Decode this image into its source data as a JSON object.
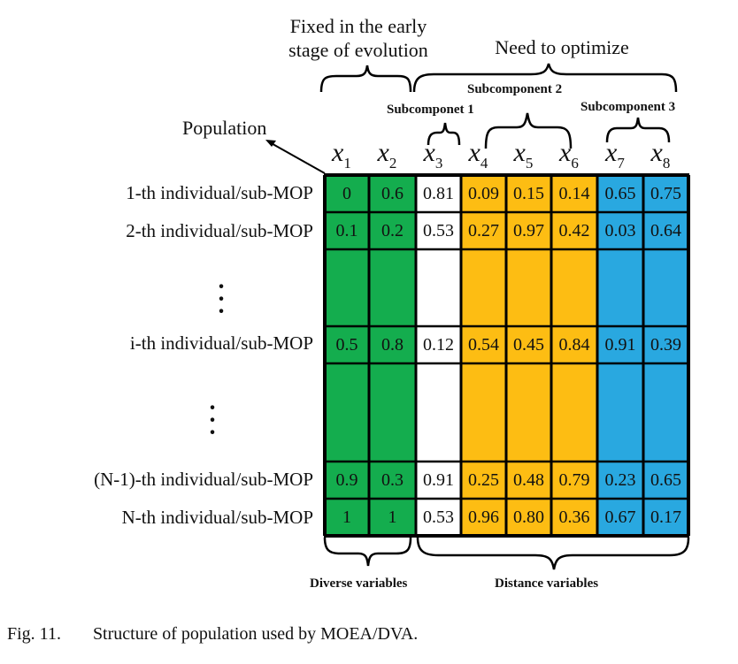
{
  "annotations": {
    "fixed_line1": "Fixed in the early",
    "fixed_line2": "stage of evolution",
    "need_optimize": "Need to optimize",
    "subcomponent1": "Subcomponet 1",
    "subcomponent2": "Subcomponent 2",
    "subcomponent3": "Subcomponent 3",
    "population": "Population",
    "diverse_variables": "Diverse variables",
    "distance_variables": "Distance variables"
  },
  "variables": [
    {
      "base": "x",
      "sub": "1"
    },
    {
      "base": "x",
      "sub": "2"
    },
    {
      "base": "x",
      "sub": "3"
    },
    {
      "base": "x",
      "sub": "4"
    },
    {
      "base": "x",
      "sub": "5"
    },
    {
      "base": "x",
      "sub": "6"
    },
    {
      "base": "x",
      "sub": "7"
    },
    {
      "base": "x",
      "sub": "8"
    }
  ],
  "column_colors": [
    "#14ad4e",
    "#14ad4e",
    "#ffffff",
    "#fdbd13",
    "#fdbd13",
    "#fdbd13",
    "#29a8e0",
    "#29a8e0"
  ],
  "rows": [
    {
      "label": "1-th individual/sub-MOP",
      "values": [
        "0",
        "0.6",
        "0.81",
        "0.09",
        "0.15",
        "0.14",
        "0.65",
        "0.75"
      ]
    },
    {
      "label": "2-th individual/sub-MOP",
      "values": [
        "0.1",
        "0.2",
        "0.53",
        "0.27",
        "0.97",
        "0.42",
        "0.03",
        "0.64"
      ]
    },
    {
      "label": "i-th individual/sub-MOP",
      "values": [
        "0.5",
        "0.8",
        "0.12",
        "0.54",
        "0.45",
        "0.84",
        "0.91",
        "0.39"
      ]
    },
    {
      "label": "(N-1)-th individual/sub-MOP",
      "values": [
        "0.9",
        "0.3",
        "0.91",
        "0.25",
        "0.48",
        "0.79",
        "0.23",
        "0.65"
      ]
    },
    {
      "label": "N-th individual/sub-MOP",
      "values": [
        "1",
        "1",
        "0.53",
        "0.96",
        "0.80",
        "0.36",
        "0.67",
        "0.17"
      ]
    }
  ],
  "caption": {
    "label": "Fig. 11.",
    "text": "Structure of population used by MOEA/DVA."
  }
}
